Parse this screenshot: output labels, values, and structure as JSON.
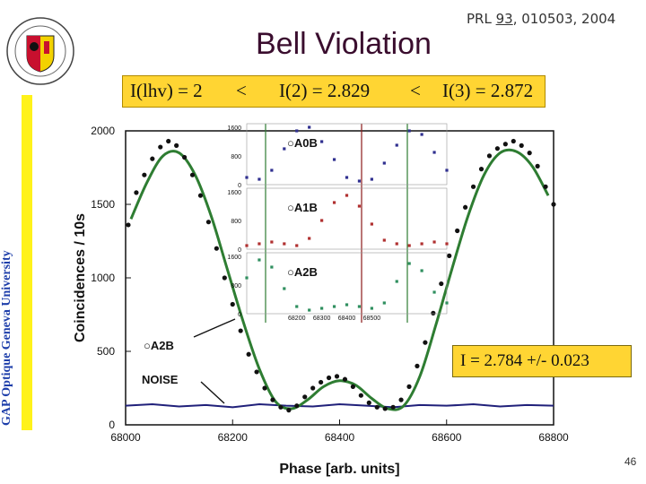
{
  "slide": {
    "title": "Bell Violation",
    "ref_prefix": "PRL ",
    "ref_volume": "93",
    "ref_suffix": ", 010503, 2004",
    "banner": {
      "left": "I(lhv) = 2",
      "lt1": "<",
      "mid": "I(2) = 2.829",
      "lt2": "<",
      "right": "I(3) = 2.872"
    },
    "side_label": "GAP Optique   Geneva University",
    "fit_result": "I = 2.784 +/- 0.023",
    "page_number": "46",
    "colors": {
      "banner": "#ffd533",
      "side_bar": "#fff21a",
      "fit_curve": "#2e7d32",
      "noise": "#20207a",
      "inset_1": "#2f2f8f",
      "inset_2": "#b03030",
      "inset_3": "#2f8f5f"
    }
  },
  "chart_data": {
    "type": "scatter",
    "xlabel": "Phase  [arb. units]",
    "ylabel": "Coincidences / 10s",
    "xlim": [
      68000,
      68800
    ],
    "ylim": [
      0,
      2000
    ],
    "xticks": [
      "68000",
      "68200",
      "68400",
      "68600",
      "68800"
    ],
    "yticks": [
      "0",
      "500",
      "1000",
      "1500",
      "2000"
    ],
    "series_labels": {
      "fit": "○A2B",
      "noise": "NOISE"
    },
    "main_points_x": [
      68005,
      68020,
      68035,
      68050,
      68065,
      68080,
      68095,
      68110,
      68125,
      68140,
      68155,
      68170,
      68185,
      68200,
      68215,
      68230,
      68245,
      68260,
      68275,
      68290,
      68305,
      68320,
      68335,
      68350,
      68365,
      68380,
      68395,
      68410,
      68425,
      68440,
      68455,
      68470,
      68485,
      68500,
      68515,
      68530,
      68545,
      68560,
      68575,
      68590,
      68605,
      68620,
      68635,
      68650,
      68665,
      68680,
      68695,
      68710,
      68725,
      68740,
      68755,
      68770,
      68785,
      68800
    ],
    "main_points_y": [
      1360,
      1580,
      1700,
      1810,
      1890,
      1930,
      1900,
      1820,
      1700,
      1560,
      1380,
      1200,
      1000,
      820,
      640,
      480,
      360,
      250,
      170,
      120,
      100,
      130,
      190,
      250,
      290,
      320,
      330,
      310,
      260,
      200,
      150,
      120,
      110,
      120,
      170,
      260,
      400,
      560,
      760,
      960,
      1150,
      1320,
      1480,
      1620,
      1740,
      1830,
      1880,
      1910,
      1930,
      1900,
      1850,
      1760,
      1620,
      1500
    ],
    "fit_x": [
      68010,
      68040,
      68070,
      68100,
      68130,
      68160,
      68190,
      68220,
      68250,
      68280,
      68310,
      68340,
      68370,
      68400,
      68430,
      68460,
      68490,
      68520,
      68550,
      68580,
      68610,
      68640,
      68670,
      68700,
      68730,
      68760,
      68790
    ],
    "fit_y": [
      1400,
      1650,
      1830,
      1850,
      1700,
      1420,
      1060,
      700,
      380,
      160,
      110,
      170,
      260,
      300,
      270,
      180,
      110,
      130,
      330,
      680,
      1060,
      1420,
      1700,
      1850,
      1860,
      1760,
      1560
    ],
    "noise_x": [
      68000,
      68050,
      68100,
      68150,
      68200,
      68250,
      68300,
      68350,
      68400,
      68450,
      68500,
      68550,
      68600,
      68650,
      68700,
      68750,
      68800
    ],
    "noise_y": [
      130,
      140,
      125,
      135,
      120,
      140,
      130,
      125,
      140,
      130,
      120,
      135,
      130,
      140,
      125,
      135,
      130
    ],
    "insets": [
      {
        "label": "○A0B",
        "yticks": [
          "1600",
          "800",
          "0"
        ],
        "x": [
          68000,
          68050,
          68100,
          68150,
          68200,
          68250,
          68300,
          68350,
          68400,
          68450,
          68500,
          68550,
          68600,
          68650,
          68700,
          68750,
          68800
        ],
        "y": [
          200,
          150,
          400,
          1000,
          1500,
          1600,
          1200,
          700,
          200,
          100,
          150,
          600,
          1100,
          1500,
          1400,
          900,
          400
        ]
      },
      {
        "label": "○A1B",
        "yticks": [
          "1600",
          "800",
          "0"
        ],
        "x": [
          68000,
          68050,
          68100,
          68150,
          68200,
          68250,
          68300,
          68350,
          68400,
          68450,
          68500,
          68550,
          68600,
          68650,
          68700,
          68750,
          68800
        ],
        "y": [
          100,
          150,
          200,
          150,
          100,
          300,
          800,
          1300,
          1500,
          1200,
          700,
          250,
          150,
          100,
          150,
          200,
          150
        ]
      },
      {
        "label": "○A2B",
        "yticks": [
          "1600",
          "800",
          "0"
        ],
        "x": [
          68000,
          68050,
          68100,
          68150,
          68200,
          68250,
          68300,
          68350,
          68400,
          68450,
          68500,
          68550,
          68600,
          68650,
          68700,
          68750,
          68800
        ],
        "y": [
          1000,
          1500,
          1300,
          700,
          200,
          100,
          150,
          200,
          250,
          200,
          150,
          300,
          900,
          1400,
          1200,
          600,
          300
        ]
      }
    ],
    "inset_xticks": [
      "68200",
      "68300",
      "68400",
      "68500"
    ]
  }
}
